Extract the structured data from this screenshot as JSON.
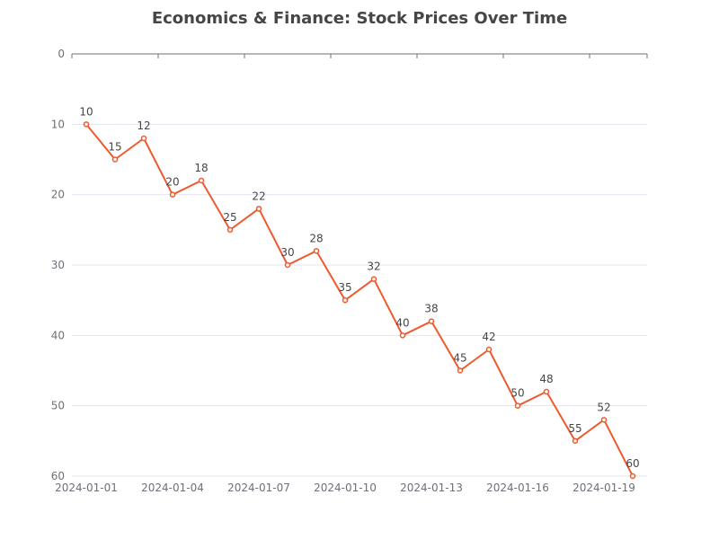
{
  "chart_data": {
    "type": "line",
    "title": "Economics & Finance: Stock Prices Over Time",
    "xlabel": "",
    "ylabel": "",
    "x": [
      "2024-01-01",
      "2024-01-02",
      "2024-01-03",
      "2024-01-04",
      "2024-01-05",
      "2024-01-06",
      "2024-01-07",
      "2024-01-08",
      "2024-01-09",
      "2024-01-10",
      "2024-01-11",
      "2024-01-12",
      "2024-01-13",
      "2024-01-14",
      "2024-01-15",
      "2024-01-16",
      "2024-01-17",
      "2024-01-18",
      "2024-01-19",
      "2024-01-20"
    ],
    "x_tick_labels": [
      "2024-01-01",
      "2024-01-04",
      "2024-01-07",
      "2024-01-10",
      "2024-01-13",
      "2024-01-16",
      "2024-01-19"
    ],
    "series": [
      {
        "name": "",
        "color": "#ee5a2f",
        "values": [
          10,
          15,
          12,
          20,
          18,
          25,
          22,
          30,
          28,
          35,
          32,
          40,
          38,
          45,
          42,
          50,
          48,
          55,
          52,
          60
        ]
      }
    ],
    "ylim": [
      0,
      60
    ],
    "y_inverted": true,
    "y_ticks": [
      0,
      10,
      20,
      30,
      40,
      50,
      60
    ],
    "grid": true,
    "data_labels": true
  }
}
